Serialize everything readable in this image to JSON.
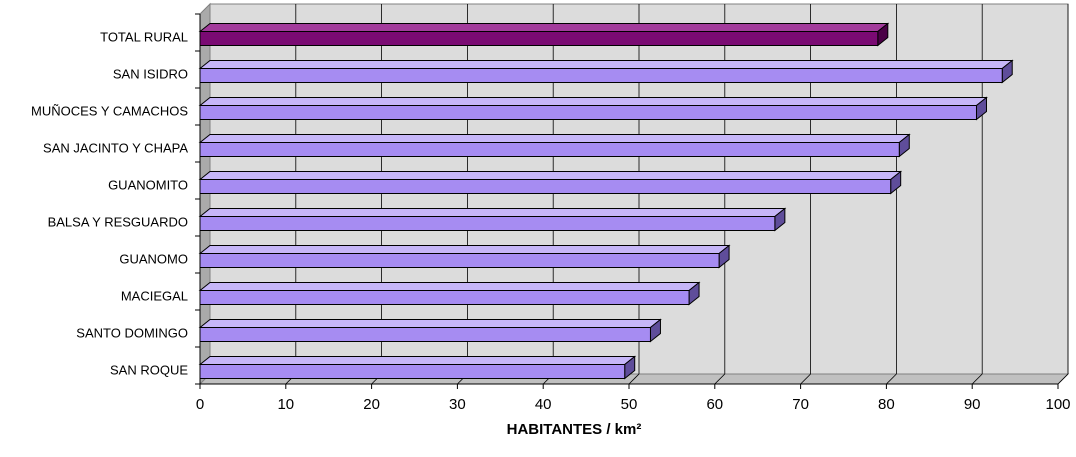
{
  "chart_data": {
    "type": "bar",
    "orientation": "horizontal",
    "categories": [
      "TOTAL RURAL",
      "SAN ISIDRO",
      "MUÑOCES Y CAMACHOS",
      "SAN JACINTO Y CHAPA",
      "GUANOMITO",
      "BALSA Y RESGUARDO",
      "GUANOMO",
      "MACIEGAL",
      "SANTO DOMINGO",
      "SAN ROQUE"
    ],
    "values": [
      79,
      93.5,
      90.5,
      81.5,
      80.5,
      67,
      60.5,
      57,
      52.5,
      49.5
    ],
    "highlight_category": "TOTAL RURAL",
    "xlabel": "HABITANTES / km²",
    "ylabel": "",
    "xlim": [
      0,
      100
    ],
    "xticks": [
      0,
      10,
      20,
      30,
      40,
      50,
      60,
      70,
      80,
      90,
      100
    ],
    "grid": "vertical",
    "legend": "none",
    "style": "3d"
  },
  "colors": {
    "bar": "#a68cf2",
    "bar_top": "#c6b6f8",
    "bar_side": "#5f4d9a",
    "highlight": "#7a0a73",
    "highlight_top": "#a23b9b",
    "highlight_side": "#4a0046",
    "plot_back": "#dcdcdc",
    "plot_wall": "#aaaaaa",
    "grid": "#000000"
  }
}
